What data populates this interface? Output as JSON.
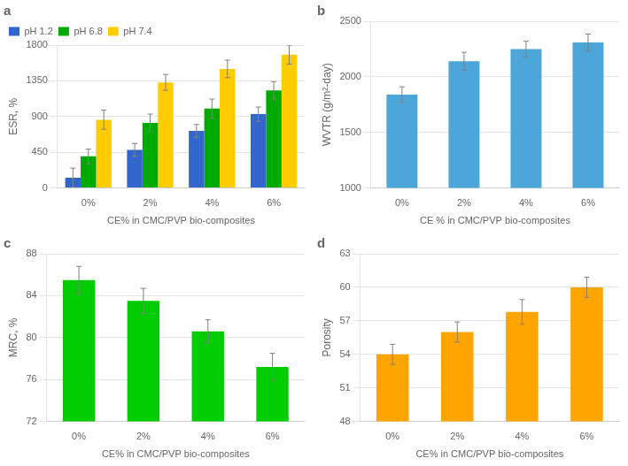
{
  "chart_data": [
    {
      "type": "bar",
      "annotation": "a",
      "xlabel": "CE% in CMC/PVP bio-composites",
      "ylabel": "ESR, %",
      "categories": [
        "0%",
        "2%",
        "4%",
        "6%"
      ],
      "series": [
        {
          "name": "pH 1.2",
          "color": "#3366cc",
          "values": [
            130,
            480,
            720,
            930
          ],
          "errors": [
            120,
            80,
            80,
            90
          ]
        },
        {
          "name": "pH 6.8",
          "color": "#00aa00",
          "values": [
            400,
            820,
            1000,
            1230
          ],
          "errors": [
            90,
            110,
            120,
            110
          ]
        },
        {
          "name": "pH 7.4",
          "color": "#ffcc00",
          "values": [
            860,
            1330,
            1500,
            1680
          ],
          "errors": [
            120,
            100,
            110,
            120
          ]
        }
      ],
      "ylim": [
        0,
        1800
      ],
      "yticks": [
        0,
        450,
        900,
        1350,
        1800
      ],
      "grid": true,
      "legend": "upper left"
    },
    {
      "type": "bar",
      "annotation": "b",
      "xlabel": "CE % in CMC/PVP bio-composites",
      "ylabel": "WVTR (g/m²-day)",
      "categories": [
        "0%",
        "2%",
        "4%",
        "6%"
      ],
      "values": [
        1840,
        2140,
        2250,
        2310
      ],
      "errors": [
        70,
        80,
        70,
        75
      ],
      "color": "#4da6d9",
      "ylim": [
        1000,
        2500
      ],
      "yticks": [
        1000,
        1500,
        2000,
        2500
      ],
      "grid": true
    },
    {
      "type": "bar",
      "annotation": "c",
      "xlabel": "CE% in CMC/PVP bio-composites",
      "ylabel": "MRC, %",
      "categories": [
        "0%",
        "2%",
        "4%",
        "6%"
      ],
      "values": [
        85.5,
        83.5,
        80.6,
        77.2
      ],
      "errors": [
        1.3,
        1.2,
        1.1,
        1.3
      ],
      "color": "#00cc00",
      "ylim": [
        72,
        88
      ],
      "yticks": [
        72,
        76,
        80,
        84,
        88
      ],
      "grid": true
    },
    {
      "type": "bar",
      "annotation": "d",
      "xlabel": "CE% in CMC/PVP bio-composites",
      "ylabel": "Porosity",
      "categories": [
        "0%",
        "2%",
        "4%",
        "6%"
      ],
      "values": [
        54.0,
        56.0,
        57.8,
        60.0
      ],
      "errors": [
        0.9,
        0.9,
        1.1,
        0.9
      ],
      "color": "#ffa500",
      "ylim": [
        48,
        63
      ],
      "yticks": [
        48,
        51,
        54,
        57,
        60,
        63
      ],
      "grid": true
    }
  ]
}
